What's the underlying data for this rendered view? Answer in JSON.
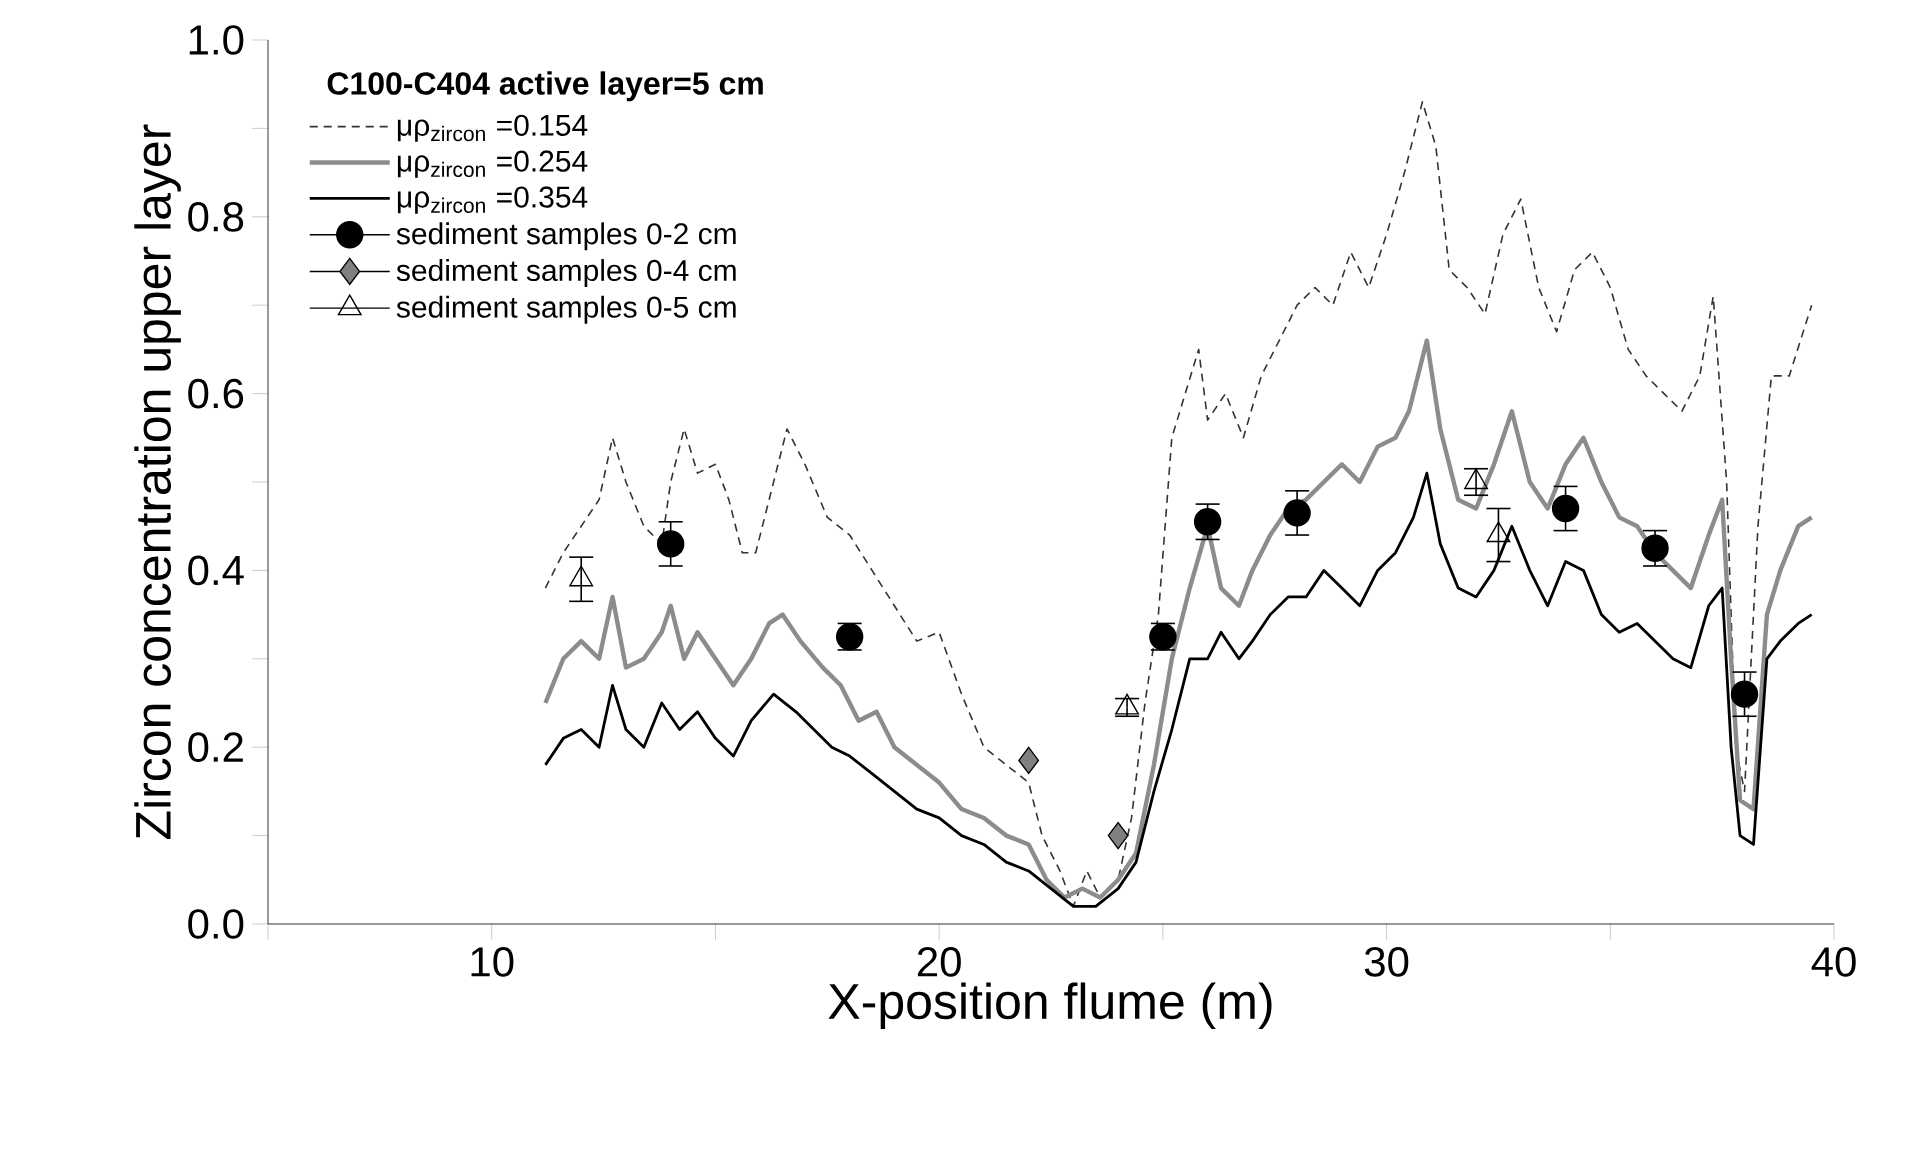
{
  "chart_data": {
    "type": "line",
    "xlabel": "X-position flume (m)",
    "ylabel": "Zircon concentration upper layer",
    "legend_title": "C100-C404 active layer=5 cm",
    "legend": "top left",
    "grid": false,
    "xlim": [
      5,
      40
    ],
    "ylim": [
      0,
      1
    ],
    "xticks": [
      {
        "value": 5,
        "label": null
      },
      10,
      {
        "value": 15,
        "label": null
      },
      20,
      {
        "value": 25,
        "label": null
      },
      30,
      {
        "value": 35,
        "label": null
      },
      40
    ],
    "yticks": [
      {
        "value": 0,
        "label": "0.0"
      },
      {
        "value": 0.1,
        "label": null
      },
      {
        "value": 0.2,
        "label": "0.2"
      },
      {
        "value": 0.3,
        "label": null
      },
      {
        "value": 0.4,
        "label": "0.4"
      },
      {
        "value": 0.5,
        "label": null
      },
      {
        "value": 0.6,
        "label": "0.6"
      },
      {
        "value": 0.7,
        "label": null
      },
      {
        "value": 0.8,
        "label": "0.8"
      },
      {
        "value": 0.9,
        "label": null
      },
      {
        "value": 1.0,
        "label": "1.0"
      }
    ],
    "series": [
      {
        "name": "μρ$_{zircon}$ =0.154",
        "type": "line",
        "line_style": "dashed",
        "marker": "none",
        "color": "#333333",
        "x": [
          11.2,
          11.6,
          12,
          12.4,
          12.7,
          13,
          13.4,
          13.8,
          14,
          14.3,
          14.6,
          15,
          15.3,
          15.6,
          15.9,
          16.3,
          16.6,
          17,
          17.5,
          18,
          18.5,
          19,
          19.5,
          20,
          20.5,
          21,
          21.5,
          22,
          22.3,
          22.7,
          23,
          23.3,
          23.6,
          24,
          24.3,
          24.6,
          24.9,
          25.2,
          25.5,
          25.8,
          26,
          26.4,
          26.8,
          27.2,
          27.6,
          28,
          28.4,
          28.8,
          29.2,
          29.6,
          30,
          30.4,
          30.8,
          31.1,
          31.4,
          31.8,
          32.2,
          32.6,
          33,
          33.4,
          33.8,
          34.2,
          34.6,
          35,
          35.4,
          35.8,
          36.2,
          36.6,
          37,
          37.3,
          37.6,
          37.8,
          38,
          38.3,
          38.6,
          39,
          39.5
        ],
        "values": [
          0.38,
          0.42,
          0.45,
          0.48,
          0.55,
          0.5,
          0.45,
          0.43,
          0.5,
          0.56,
          0.51,
          0.52,
          0.48,
          0.42,
          0.42,
          0.5,
          0.56,
          0.52,
          0.46,
          0.44,
          0.4,
          0.36,
          0.32,
          0.33,
          0.26,
          0.2,
          0.18,
          0.16,
          0.1,
          0.06,
          0.02,
          0.06,
          0.03,
          0.05,
          0.12,
          0.25,
          0.35,
          0.55,
          0.6,
          0.65,
          0.57,
          0.6,
          0.55,
          0.62,
          0.66,
          0.7,
          0.72,
          0.7,
          0.76,
          0.72,
          0.78,
          0.85,
          0.93,
          0.88,
          0.74,
          0.72,
          0.69,
          0.78,
          0.82,
          0.72,
          0.67,
          0.74,
          0.76,
          0.72,
          0.65,
          0.62,
          0.6,
          0.58,
          0.62,
          0.71,
          0.5,
          0.2,
          0.15,
          0.45,
          0.62,
          0.62,
          0.7
        ]
      },
      {
        "name": "μρ$_{zircon}$ =0.254",
        "type": "line",
        "line_style": "solid",
        "marker": "none",
        "color": "#8c8c8c",
        "x": [
          11.2,
          11.6,
          12,
          12.4,
          12.7,
          13,
          13.4,
          13.8,
          14,
          14.3,
          14.6,
          15,
          15.4,
          15.8,
          16.2,
          16.5,
          16.9,
          17.4,
          17.8,
          18.2,
          18.6,
          19,
          19.5,
          20,
          20.5,
          21,
          21.5,
          22,
          22.4,
          22.8,
          23.2,
          23.6,
          24,
          24.4,
          24.8,
          25.2,
          25.6,
          26,
          26.3,
          26.7,
          27,
          27.4,
          27.8,
          28.2,
          28.6,
          29,
          29.4,
          29.8,
          30.2,
          30.5,
          30.9,
          31.2,
          31.6,
          32,
          32.4,
          32.8,
          33.2,
          33.6,
          34,
          34.4,
          34.8,
          35.2,
          35.6,
          36,
          36.4,
          36.8,
          37.2,
          37.5,
          37.7,
          37.9,
          38.2,
          38.5,
          38.8,
          39.2,
          39.5
        ],
        "values": [
          0.25,
          0.3,
          0.32,
          0.3,
          0.37,
          0.29,
          0.3,
          0.33,
          0.36,
          0.3,
          0.33,
          0.3,
          0.27,
          0.3,
          0.34,
          0.35,
          0.32,
          0.29,
          0.27,
          0.23,
          0.24,
          0.2,
          0.18,
          0.16,
          0.13,
          0.12,
          0.1,
          0.09,
          0.05,
          0.03,
          0.04,
          0.03,
          0.05,
          0.08,
          0.18,
          0.3,
          0.38,
          0.45,
          0.38,
          0.36,
          0.4,
          0.44,
          0.47,
          0.48,
          0.5,
          0.52,
          0.5,
          0.54,
          0.55,
          0.58,
          0.66,
          0.56,
          0.48,
          0.47,
          0.52,
          0.58,
          0.5,
          0.47,
          0.52,
          0.55,
          0.5,
          0.46,
          0.45,
          0.42,
          0.4,
          0.38,
          0.44,
          0.48,
          0.3,
          0.14,
          0.13,
          0.35,
          0.4,
          0.45,
          0.46
        ]
      },
      {
        "name": "μρ$_{zircon}$ =0.354",
        "type": "line",
        "line_style": "solid",
        "marker": "none",
        "color": "#000000",
        "x": [
          11.2,
          11.6,
          12,
          12.4,
          12.7,
          13,
          13.4,
          13.8,
          14.2,
          14.6,
          15,
          15.4,
          15.8,
          16.3,
          16.8,
          17.2,
          17.6,
          18,
          18.5,
          19,
          19.5,
          20,
          20.5,
          21,
          21.5,
          22,
          22.5,
          23,
          23.5,
          24,
          24.4,
          24.8,
          25.2,
          25.6,
          26,
          26.3,
          26.7,
          27,
          27.4,
          27.8,
          28.2,
          28.6,
          29,
          29.4,
          29.8,
          30.2,
          30.6,
          30.9,
          31.2,
          31.6,
          32,
          32.4,
          32.8,
          33.2,
          33.6,
          34,
          34.4,
          34.8,
          35.2,
          35.6,
          36,
          36.4,
          36.8,
          37.2,
          37.5,
          37.7,
          37.9,
          38.2,
          38.5,
          38.8,
          39.2,
          39.5
        ],
        "values": [
          0.18,
          0.21,
          0.22,
          0.2,
          0.27,
          0.22,
          0.2,
          0.25,
          0.22,
          0.24,
          0.21,
          0.19,
          0.23,
          0.26,
          0.24,
          0.22,
          0.2,
          0.19,
          0.17,
          0.15,
          0.13,
          0.12,
          0.1,
          0.09,
          0.07,
          0.06,
          0.04,
          0.02,
          0.02,
          0.04,
          0.07,
          0.15,
          0.22,
          0.3,
          0.3,
          0.33,
          0.3,
          0.32,
          0.35,
          0.37,
          0.37,
          0.4,
          0.38,
          0.36,
          0.4,
          0.42,
          0.46,
          0.51,
          0.43,
          0.38,
          0.37,
          0.4,
          0.45,
          0.4,
          0.36,
          0.41,
          0.4,
          0.35,
          0.33,
          0.34,
          0.32,
          0.3,
          0.29,
          0.36,
          0.38,
          0.2,
          0.1,
          0.09,
          0.3,
          0.32,
          0.34,
          0.35
        ]
      },
      {
        "name": "sediment samples 0-2 cm",
        "type": "scatter",
        "marker": "circle",
        "color": "#000000",
        "x": [
          14,
          18,
          25,
          26,
          28,
          34,
          36,
          38
        ],
        "values": [
          0.43,
          0.325,
          0.325,
          0.455,
          0.465,
          0.47,
          0.425,
          0.26
        ],
        "errors": [
          0.025,
          0.015,
          0.015,
          0.02,
          0.025,
          0.025,
          0.02,
          0.025
        ]
      },
      {
        "name": "sediment samples 0-4 cm",
        "type": "scatter",
        "marker": "diamond",
        "color": "#808080",
        "x": [
          22,
          24
        ],
        "values": [
          0.185,
          0.1
        ]
      },
      {
        "name": "sediment samples 0-5 cm",
        "type": "scatter",
        "marker": "triangle",
        "color": "#000000",
        "x": [
          12,
          24.2,
          32,
          32.5
        ],
        "values": [
          0.39,
          0.245,
          0.5,
          0.44
        ],
        "errors": [
          0.025,
          0.01,
          0.015,
          0.03
        ]
      }
    ]
  }
}
